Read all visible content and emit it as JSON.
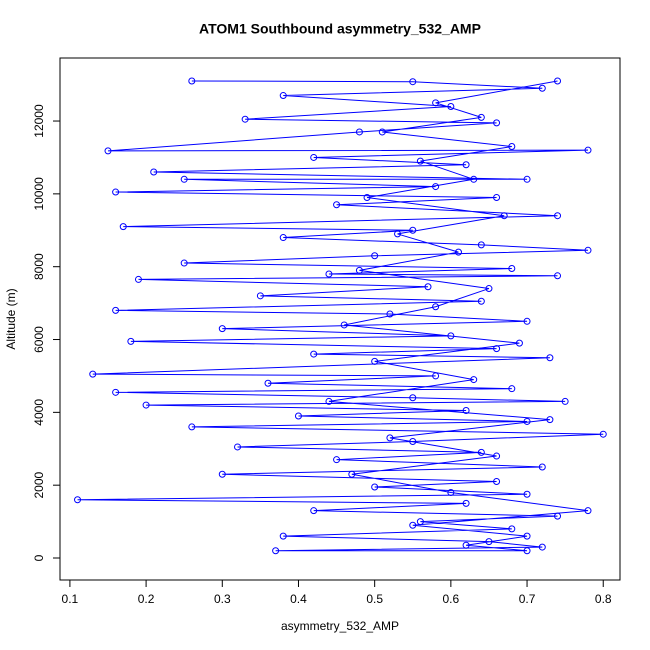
{
  "chart_data": {
    "type": "line",
    "title": "ATOM1 Southbound asymmetry_532_AMP",
    "x_label": "asymmetry_532_AMP",
    "y_label": "Altitude (m)",
    "xlim": [
      0.087,
      0.822
    ],
    "ylim": [
      -604,
      13731
    ],
    "xticks": [
      0.1,
      0.2,
      0.3,
      0.4,
      0.5,
      0.6,
      0.7,
      0.8
    ],
    "yticks": [
      0,
      2000,
      4000,
      6000,
      8000,
      10000,
      12000
    ],
    "marker": "circle",
    "grid": false,
    "series": [
      {
        "name": "asymmetry_532_AMP",
        "color": "#0000ff",
        "x": [
          0.26,
          0.55,
          0.72,
          0.38,
          0.6,
          0.33,
          0.66,
          0.48,
          0.15,
          0.78,
          0.42,
          0.62,
          0.21,
          0.7,
          0.25,
          0.58,
          0.16,
          0.66,
          0.45,
          0.74,
          0.17,
          0.55,
          0.38,
          0.64,
          0.78,
          0.5,
          0.25,
          0.68,
          0.44,
          0.74,
          0.19,
          0.57,
          0.35,
          0.64,
          0.16,
          0.52,
          0.7,
          0.3,
          0.6,
          0.18,
          0.66,
          0.42,
          0.73,
          0.13,
          0.58,
          0.36,
          0.68,
          0.16,
          0.55,
          0.75,
          0.2,
          0.62,
          0.4,
          0.7,
          0.26,
          0.8,
          0.55,
          0.32,
          0.64,
          0.45,
          0.72,
          0.3,
          0.66,
          0.5,
          0.7,
          0.11,
          0.62,
          0.42,
          0.74,
          0.56,
          0.68,
          0.38,
          0.65,
          0.72,
          0.37,
          0.7,
          0.62,
          0.7,
          0.55,
          0.78,
          0.6,
          0.47,
          0.66,
          0.52,
          0.73,
          0.44,
          0.63,
          0.5,
          0.69,
          0.46,
          0.58,
          0.65,
          0.48,
          0.61,
          0.53,
          0.67,
          0.49,
          0.63,
          0.56,
          0.68,
          0.51,
          0.64,
          0.58,
          0.74
        ],
        "values": [
          13100,
          13080,
          12900,
          12700,
          12400,
          12050,
          11950,
          11700,
          11180,
          11200,
          11000,
          10800,
          10600,
          10400,
          10400,
          10200,
          10050,
          9900,
          9700,
          9400,
          9100,
          9000,
          8800,
          8600,
          8450,
          8300,
          8100,
          7950,
          7800,
          7750,
          7650,
          7450,
          7200,
          7050,
          6800,
          6700,
          6500,
          6300,
          6100,
          5950,
          5750,
          5600,
          5500,
          5050,
          5000,
          4800,
          4650,
          4550,
          4400,
          4300,
          4200,
          4050,
          3900,
          3750,
          3600,
          3400,
          3200,
          3050,
          2900,
          2700,
          2500,
          2300,
          2100,
          1950,
          1750,
          1600,
          1500,
          1300,
          1150,
          1000,
          800,
          600,
          450,
          300,
          200,
          200,
          350,
          600,
          900,
          1300,
          1800,
          2300,
          2800,
          3300,
          3800,
          4300,
          4900,
          5400,
          5900,
          6400,
          6900,
          7400,
          7900,
          8400,
          8900,
          9400,
          9900,
          10400,
          10900,
          11300,
          11700,
          12100,
          12500,
          13100
        ]
      }
    ]
  }
}
